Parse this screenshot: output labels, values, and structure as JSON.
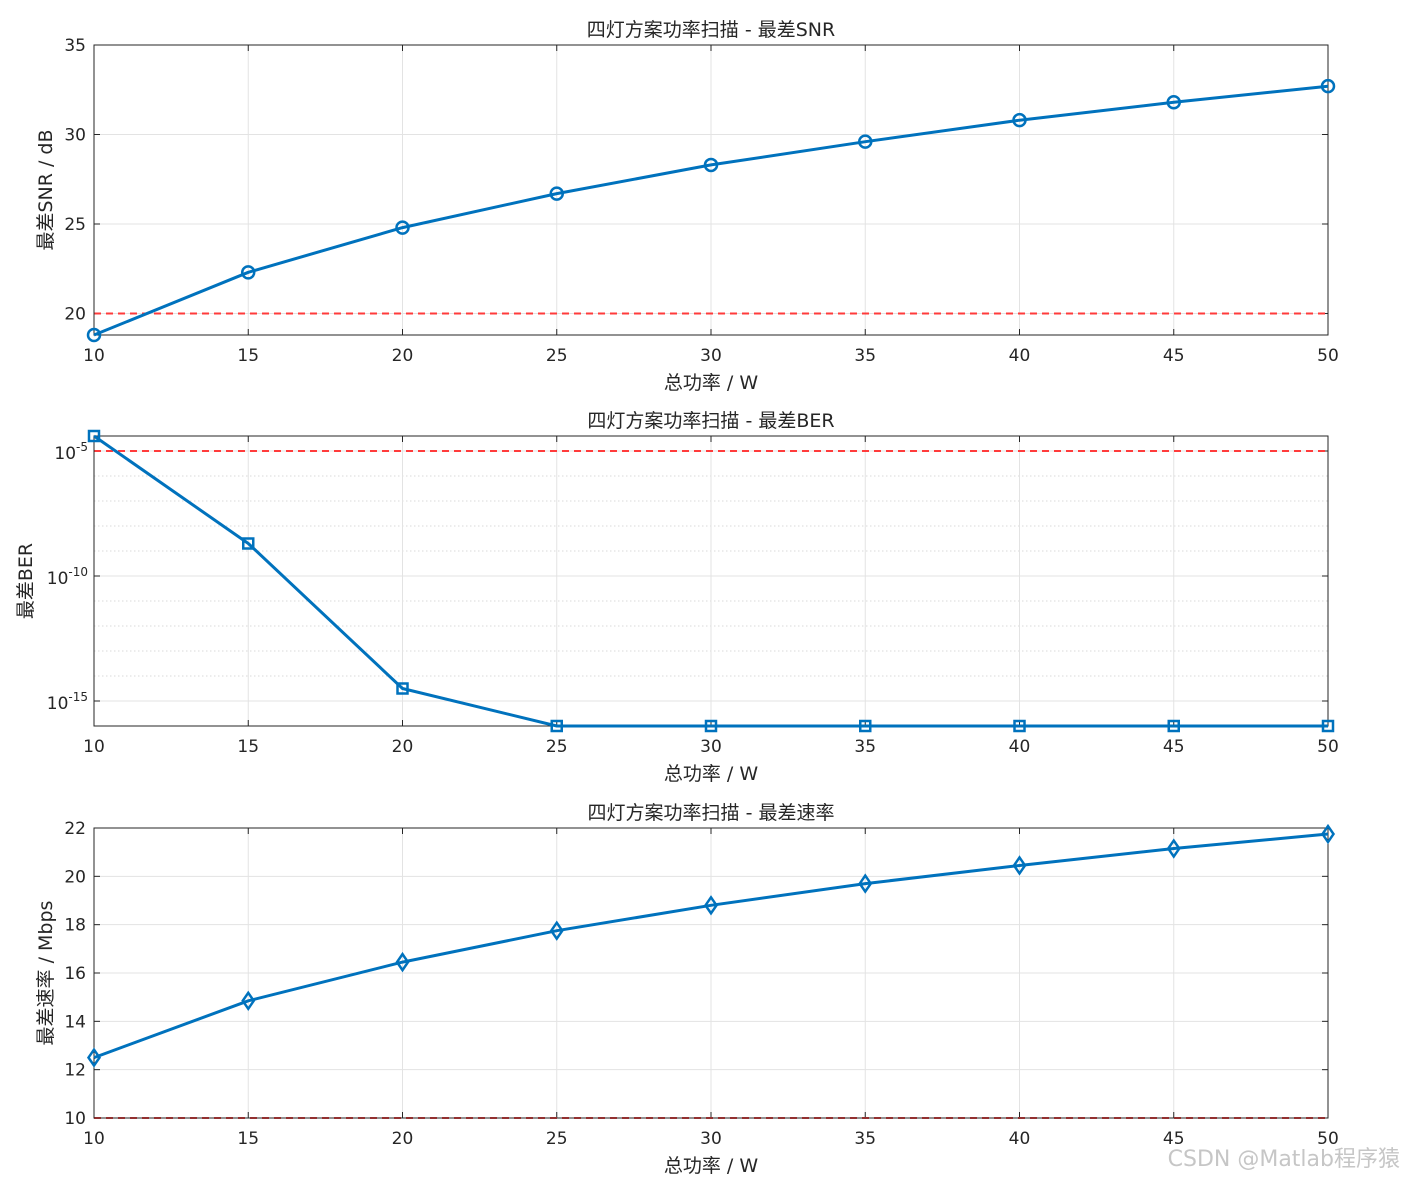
{
  "watermark": "CSDN @Matlab程序猿",
  "style": {
    "line_color": "#0072BD",
    "threshold_color": "#FF3B3B",
    "grid_color": "#e3e3e3",
    "axis_color": "#262626"
  },
  "chart_data": [
    {
      "type": "line",
      "title": "四灯方案功率扫描 - 最差SNR",
      "xlabel": "总功率 / W",
      "ylabel": "最差SNR / dB",
      "xlim": [
        10,
        50
      ],
      "ylim": [
        18.8,
        35
      ],
      "yscale": "linear",
      "xticks": [
        10,
        15,
        20,
        25,
        30,
        35,
        40,
        45,
        50
      ],
      "yticks": [
        20,
        25,
        30,
        35
      ],
      "grid": true,
      "marker": "circle",
      "x": [
        10,
        15,
        20,
        25,
        30,
        35,
        40,
        45,
        50
      ],
      "y": [
        18.8,
        22.3,
        24.8,
        26.7,
        28.3,
        29.6,
        30.8,
        31.8,
        32.7
      ],
      "threshold": 20
    },
    {
      "type": "line",
      "title": "四灯方案功率扫描 - 最差BER",
      "xlabel": "总功率 / W",
      "ylabel": "最差BER",
      "xlim": [
        10,
        50
      ],
      "ylim_exp": [
        -16,
        -4.4
      ],
      "yscale": "log",
      "xticks": [
        10,
        15,
        20,
        25,
        30,
        35,
        40,
        45,
        50
      ],
      "yticks_exp": [
        -5,
        -10,
        -15
      ],
      "grid": true,
      "marker": "square",
      "x": [
        10,
        15,
        20,
        25,
        30,
        35,
        40,
        45,
        50
      ],
      "y_exp": [
        -4.4,
        -8.7,
        -14.5,
        -16,
        -16,
        -16,
        -16,
        -16,
        -16
      ],
      "threshold_exp": -5
    },
    {
      "type": "line",
      "title": "四灯方案功率扫描 - 最差速率",
      "xlabel": "总功率 / W",
      "ylabel": "最差速率 / Mbps",
      "xlim": [
        10,
        50
      ],
      "ylim": [
        10,
        22
      ],
      "yscale": "linear",
      "xticks": [
        10,
        15,
        20,
        25,
        30,
        35,
        40,
        45,
        50
      ],
      "yticks": [
        10,
        12,
        14,
        16,
        18,
        20,
        22
      ],
      "grid": true,
      "marker": "diamond",
      "x": [
        10,
        15,
        20,
        25,
        30,
        35,
        40,
        45,
        50
      ],
      "y": [
        12.5,
        14.85,
        16.45,
        17.75,
        18.8,
        19.7,
        20.45,
        21.15,
        21.75
      ],
      "threshold": 10
    }
  ]
}
